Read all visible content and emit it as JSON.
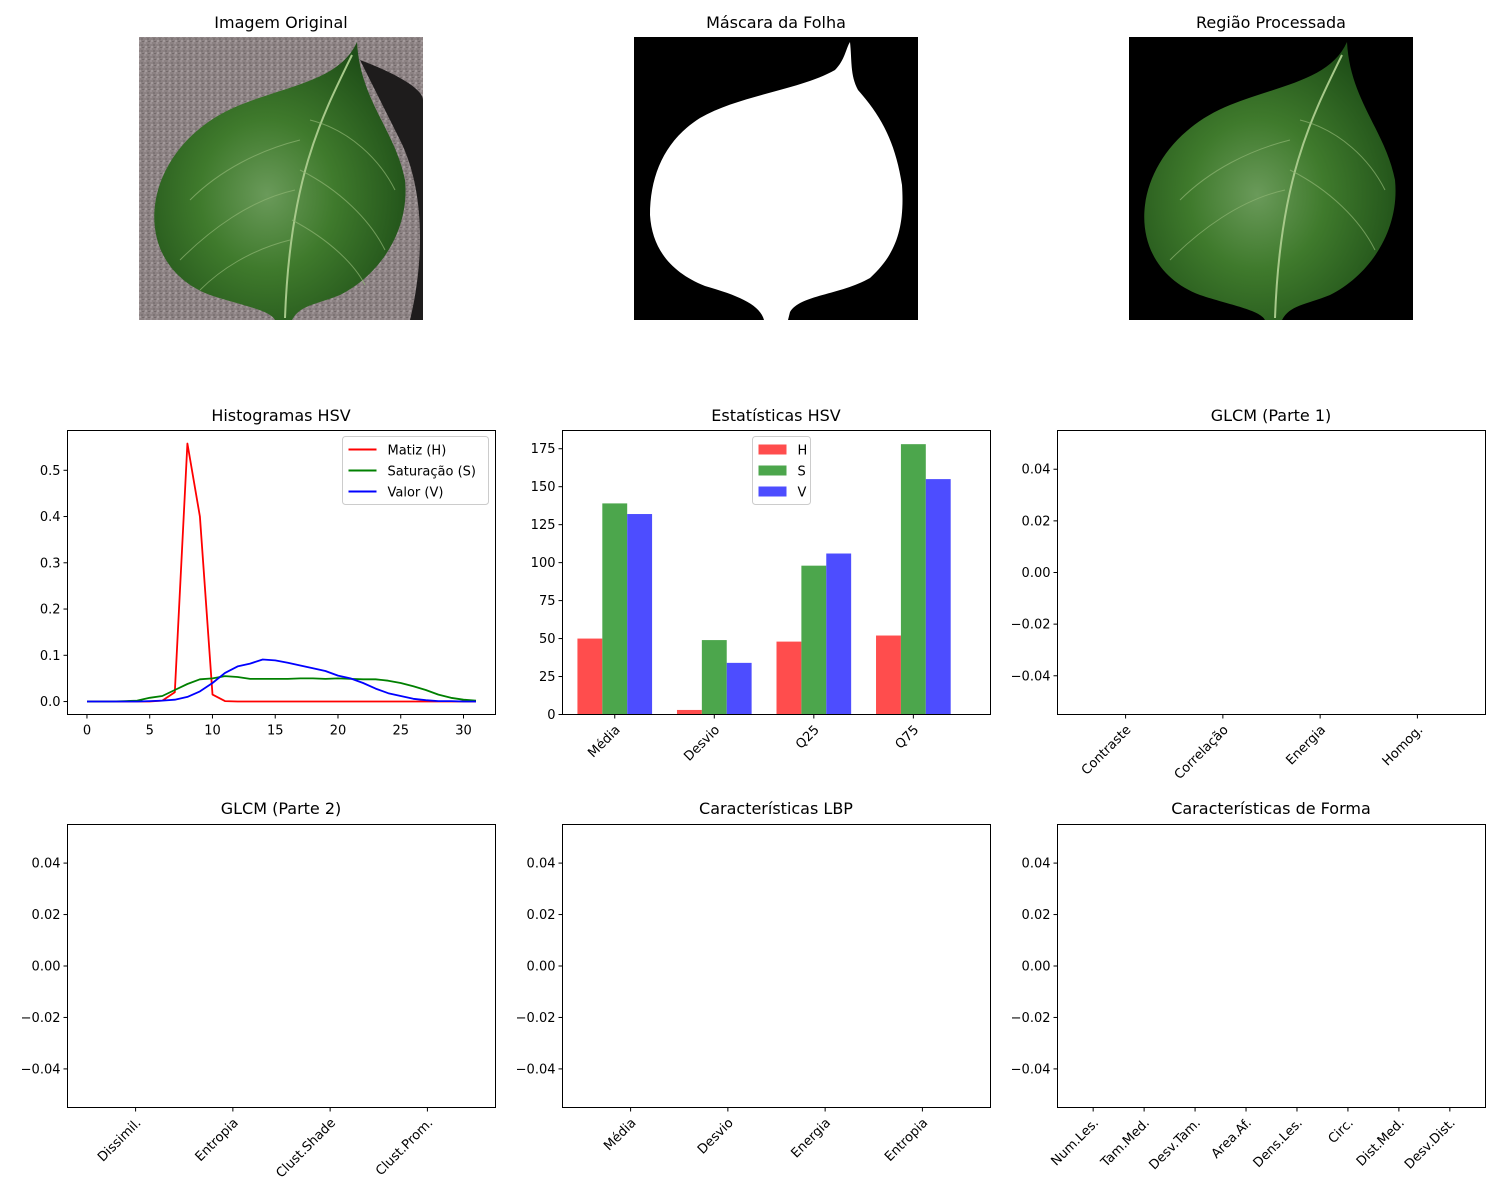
{
  "figure": {
    "background": "#ffffff"
  },
  "images": [
    {
      "title": "Imagem Original",
      "kind": "leaf-on-gray-background",
      "background_color": "#8a7f80",
      "leaf_color": "#3f7a2c",
      "shadow_color": "#1e1c1c"
    },
    {
      "title": "Máscara da Folha",
      "kind": "binary-mask",
      "background_color": "#000000",
      "leaf_color": "#ffffff"
    },
    {
      "title": "Região Processada",
      "kind": "leaf-on-black-background",
      "background_color": "#000000",
      "leaf_color": "#3f7a2c"
    }
  ],
  "chart_data": [
    {
      "id": "hist",
      "type": "line",
      "title": "Histogramas HSV",
      "xlabel": "",
      "ylabel": "",
      "xlim": [
        -1.55,
        32.55
      ],
      "ylim": [
        -0.028,
        0.586
      ],
      "xticks": [
        0,
        5,
        10,
        15,
        20,
        25,
        30
      ],
      "xtick_labels": [
        "0",
        "5",
        "10",
        "15",
        "20",
        "25",
        "30"
      ],
      "yticks": [
        0.0,
        0.1,
        0.2,
        0.3,
        0.4,
        0.5
      ],
      "ytick_labels": [
        "0.0",
        "0.1",
        "0.2",
        "0.3",
        "0.4",
        "0.5"
      ],
      "legend_position": "top-right",
      "x": [
        0,
        1,
        2,
        3,
        4,
        5,
        6,
        7,
        8,
        9,
        10,
        11,
        12,
        13,
        14,
        15,
        16,
        17,
        18,
        19,
        20,
        21,
        22,
        23,
        24,
        25,
        26,
        27,
        28,
        29,
        30,
        31
      ],
      "series": [
        {
          "name": "Matiz (H)",
          "color": "#ff0000",
          "values": [
            0,
            0,
            0,
            0,
            0,
            0,
            0.002,
            0.02,
            0.558,
            0.4,
            0.015,
            0.001,
            0,
            0,
            0,
            0,
            0,
            0,
            0,
            0,
            0,
            0,
            0,
            0,
            0,
            0,
            0,
            0,
            0,
            0,
            0,
            0
          ]
        },
        {
          "name": "Saturação (S)",
          "color": "#008000",
          "values": [
            0,
            0,
            0,
            0.001,
            0.002,
            0.008,
            0.012,
            0.025,
            0.038,
            0.048,
            0.05,
            0.055,
            0.053,
            0.049,
            0.049,
            0.049,
            0.049,
            0.05,
            0.05,
            0.049,
            0.05,
            0.049,
            0.048,
            0.048,
            0.045,
            0.04,
            0.033,
            0.025,
            0.015,
            0.008,
            0.004,
            0.002
          ]
        },
        {
          "name": "Valor (V)",
          "color": "#0000ff",
          "values": [
            0,
            0,
            0,
            0,
            0,
            0.001,
            0.002,
            0.004,
            0.01,
            0.022,
            0.04,
            0.062,
            0.076,
            0.082,
            0.091,
            0.089,
            0.084,
            0.078,
            0.072,
            0.066,
            0.056,
            0.05,
            0.04,
            0.028,
            0.018,
            0.012,
            0.006,
            0.003,
            0.001,
            0.001,
            0,
            0
          ]
        }
      ]
    },
    {
      "id": "stats",
      "type": "bar",
      "title": "Estatísticas HSV",
      "xlabel": "",
      "ylabel": "",
      "categories": [
        "Média",
        "Desvio",
        "Q25",
        "Q75"
      ],
      "ylim": [
        0,
        187
      ],
      "yticks": [
        0,
        25,
        50,
        75,
        100,
        125,
        150,
        175
      ],
      "ytick_labels": [
        "0",
        "25",
        "50",
        "75",
        "100",
        "125",
        "150",
        "175"
      ],
      "legend_position": "top-center",
      "series": [
        {
          "name": "H",
          "color": "#ff4d4d",
          "values": [
            50,
            3,
            48,
            52
          ]
        },
        {
          "name": "S",
          "color": "#4ca64c",
          "values": [
            139,
            49,
            98,
            178
          ]
        },
        {
          "name": "V",
          "color": "#4d4dff",
          "values": [
            132,
            34,
            106,
            155
          ]
        }
      ]
    },
    {
      "id": "glcm1",
      "type": "bar",
      "title": "GLCM (Parte 1)",
      "xlabel": "",
      "ylabel": "",
      "categories": [
        "Contraste",
        "Correlação",
        "Energia",
        "Homog."
      ],
      "ylim": [
        -0.055,
        0.055
      ],
      "yticks": [
        -0.04,
        -0.02,
        0.0,
        0.02,
        0.04
      ],
      "ytick_labels": [
        "−0.04",
        "−0.02",
        "0.00",
        "0.02",
        "0.04"
      ],
      "series": []
    },
    {
      "id": "glcm2",
      "type": "bar",
      "title": "GLCM (Parte 2)",
      "xlabel": "",
      "ylabel": "",
      "categories": [
        "Dissimil.",
        "Entropia",
        "Clust.Shade",
        "Clust.Prom."
      ],
      "ylim": [
        -0.055,
        0.055
      ],
      "yticks": [
        -0.04,
        -0.02,
        0.0,
        0.02,
        0.04
      ],
      "ytick_labels": [
        "−0.04",
        "−0.02",
        "0.00",
        "0.02",
        "0.04"
      ],
      "series": []
    },
    {
      "id": "lbp",
      "type": "bar",
      "title": "Características LBP",
      "xlabel": "",
      "ylabel": "",
      "categories": [
        "Média",
        "Desvio",
        "Energia",
        "Entropia"
      ],
      "ylim": [
        -0.055,
        0.055
      ],
      "yticks": [
        -0.04,
        -0.02,
        0.0,
        0.02,
        0.04
      ],
      "ytick_labels": [
        "−0.04",
        "−0.02",
        "0.00",
        "0.02",
        "0.04"
      ],
      "series": []
    },
    {
      "id": "forma",
      "type": "bar",
      "title": "Características de Forma",
      "xlabel": "",
      "ylabel": "",
      "categories": [
        "Num.Les.",
        "Tam.Med.",
        "Desv.Tam.",
        "Area.Af.",
        "Dens.Les.",
        "Circ.",
        "Dist.Med.",
        "Desv.Dist."
      ],
      "ylim": [
        -0.055,
        0.055
      ],
      "yticks": [
        -0.04,
        -0.02,
        0.0,
        0.02,
        0.04
      ],
      "ytick_labels": [
        "−0.04",
        "−0.02",
        "0.00",
        "0.02",
        "0.04"
      ],
      "series": []
    }
  ]
}
